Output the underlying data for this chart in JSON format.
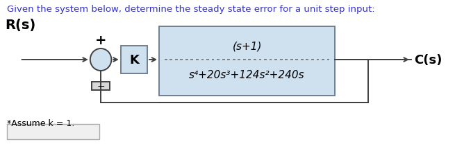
{
  "title_text": "Given the system below, determine the steady state error for a unit step input:",
  "title_color": "#3333cc",
  "title_fontsize": 9.5,
  "bg_color": "#ffffff",
  "Rs_label": "R(s)",
  "Cs_label": "C(s)",
  "K_label": "K",
  "numerator": "(s+1)",
  "denominator": "s⁴+20s³+124s²+240s",
  "assume_text": "*Assume k = 1.",
  "block_bg": "#cfe0ef",
  "block_border": "#708090",
  "sumjunction_color": "#cfe0ef",
  "line_color": "#404040",
  "text_color": "#000000",
  "dashed_line_color": "#707070",
  "feedback_rect_color": "#d8d8d8",
  "answer_box_color": "#f0f0f0"
}
